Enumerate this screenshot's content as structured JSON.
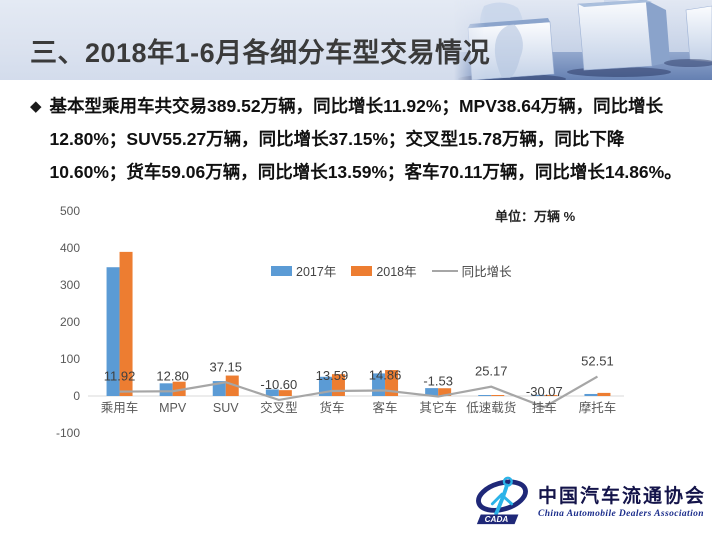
{
  "header": {
    "title": "三、2018年1-6月各细分车型交易情况"
  },
  "note": {
    "bullet": "◆",
    "text": "基本型乘用车共交易389.52万辆，同比增长11.92%；MPV38.64万辆，同比增长12.80%；SUV55.27万辆，同比增长37.15%；交叉型15.78万辆，同比下降10.60%；货车59.06万辆，同比增长13.59%；客车70.11万辆，同比增长14.86%。"
  },
  "chart_data": {
    "type": "bar+line",
    "unit_label": "单位：万辆  %",
    "categories": [
      "乘用车",
      "MPV",
      "SUV",
      "交叉型",
      "货车",
      "客车",
      "其它车",
      "低速载货",
      "挂车",
      "摩托车"
    ],
    "series": [
      {
        "name": "2017年",
        "type": "bar",
        "color": "#5B9BD5",
        "values": [
          348.04,
          34.26,
          40.3,
          17.65,
          52.0,
          61.04,
          21.3,
          2.0,
          3.0,
          5.5
        ]
      },
      {
        "name": "2018年",
        "type": "bar",
        "color": "#ED7D31",
        "values": [
          389.52,
          38.64,
          55.27,
          15.78,
          59.06,
          70.11,
          21.0,
          2.5,
          2.1,
          8.4
        ]
      },
      {
        "name": "同比增长",
        "type": "line",
        "color": "#A6A6A6",
        "values": [
          11.92,
          12.8,
          37.15,
          -10.6,
          13.59,
          14.86,
          -1.53,
          25.17,
          -30.07,
          52.51
        ]
      }
    ],
    "data_labels": [
      "11.92",
      "12.80",
      "37.15",
      "-10.60",
      "13.59",
      "14.86",
      "-1.53",
      "25.17",
      "-30.07",
      "52.51"
    ],
    "y_ticks": [
      500,
      400,
      300,
      200,
      100,
      0,
      -100
    ],
    "ylim": [
      -100,
      500
    ],
    "gridlines": false,
    "legend_position": "top-center"
  },
  "logo": {
    "cn": "中国汽车流通协会",
    "en": "China Automobile Dealers Association",
    "badge": "CADA"
  },
  "colors": {
    "bar_2017": "#5B9BD5",
    "bar_2018": "#ED7D31",
    "growth_line": "#A6A6A6",
    "axis_text": "#595959",
    "baseline": "#D9D9D9",
    "logo_navy": "#1F2878",
    "logo_light_blue": "#2BB3E8"
  }
}
